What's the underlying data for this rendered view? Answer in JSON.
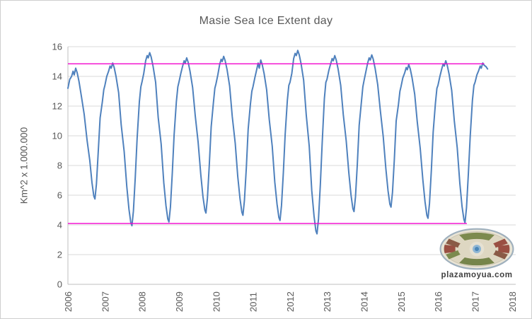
{
  "logo": {
    "text": "plazamoyua.com"
  },
  "colors": {
    "series_blue": "#4f81bd",
    "ref_magenta": "#f203cd",
    "gridline": "#d9d9d9",
    "axis_line": "#bfbfbf",
    "text_gray": "#595959"
  },
  "chart_data": {
    "type": "line",
    "title": "Masie Sea Ice Extent day",
    "xlabel": "",
    "ylabel": "Km^2 x 1.000.000",
    "ylim": [
      0,
      16
    ],
    "xlim": [
      2006,
      2018.1
    ],
    "y_ticks": [
      0,
      2,
      4,
      6,
      8,
      10,
      12,
      14,
      16
    ],
    "x_ticks": [
      2006,
      2007,
      2008,
      2009,
      2010,
      2011,
      2012,
      2013,
      2014,
      2015,
      2016,
      2017,
      2018
    ],
    "grid": "horizontal",
    "legend": "none",
    "series": [
      {
        "color": "#4f81bd",
        "points": [
          [
            2006.0,
            13.2
          ],
          [
            2006.05,
            13.8
          ],
          [
            2006.1,
            14.0
          ],
          [
            2006.14,
            14.35
          ],
          [
            2006.17,
            14.1
          ],
          [
            2006.21,
            14.55
          ],
          [
            2006.25,
            14.25
          ],
          [
            2006.3,
            13.65
          ],
          [
            2006.37,
            12.55
          ],
          [
            2006.44,
            11.45
          ],
          [
            2006.52,
            9.65
          ],
          [
            2006.59,
            8.35
          ],
          [
            2006.65,
            6.85
          ],
          [
            2006.7,
            5.95
          ],
          [
            2006.73,
            5.75
          ],
          [
            2006.77,
            6.75
          ],
          [
            2006.82,
            8.95
          ],
          [
            2006.87,
            11.2
          ],
          [
            2006.93,
            12.3
          ],
          [
            2006.97,
            13.1
          ],
          [
            2007.0,
            13.4
          ],
          [
            2007.05,
            14.0
          ],
          [
            2007.1,
            14.35
          ],
          [
            2007.14,
            14.7
          ],
          [
            2007.17,
            14.55
          ],
          [
            2007.21,
            14.9
          ],
          [
            2007.25,
            14.6
          ],
          [
            2007.3,
            14.0
          ],
          [
            2007.37,
            12.9
          ],
          [
            2007.44,
            10.75
          ],
          [
            2007.52,
            8.95
          ],
          [
            2007.59,
            6.6
          ],
          [
            2007.65,
            5.05
          ],
          [
            2007.7,
            4.15
          ],
          [
            2007.73,
            3.95
          ],
          [
            2007.77,
            4.95
          ],
          [
            2007.82,
            7.2
          ],
          [
            2007.87,
            9.8
          ],
          [
            2007.93,
            12.3
          ],
          [
            2007.97,
            13.3
          ],
          [
            2008.0,
            13.6
          ],
          [
            2008.05,
            14.2
          ],
          [
            2008.1,
            15.05
          ],
          [
            2008.14,
            15.4
          ],
          [
            2008.17,
            15.25
          ],
          [
            2008.21,
            15.6
          ],
          [
            2008.25,
            15.3
          ],
          [
            2008.3,
            14.7
          ],
          [
            2008.37,
            13.6
          ],
          [
            2008.44,
            11.25
          ],
          [
            2008.52,
            9.45
          ],
          [
            2008.59,
            6.85
          ],
          [
            2008.65,
            5.3
          ],
          [
            2008.7,
            4.4
          ],
          [
            2008.73,
            4.2
          ],
          [
            2008.77,
            5.2
          ],
          [
            2008.82,
            7.45
          ],
          [
            2008.87,
            10.05
          ],
          [
            2008.93,
            12.3
          ],
          [
            2008.97,
            13.3
          ],
          [
            2009.0,
            13.6
          ],
          [
            2009.05,
            14.2
          ],
          [
            2009.1,
            14.7
          ],
          [
            2009.14,
            15.05
          ],
          [
            2009.17,
            14.9
          ],
          [
            2009.21,
            15.25
          ],
          [
            2009.25,
            14.95
          ],
          [
            2009.3,
            14.35
          ],
          [
            2009.37,
            13.25
          ],
          [
            2009.44,
            11.35
          ],
          [
            2009.52,
            9.55
          ],
          [
            2009.59,
            7.4
          ],
          [
            2009.65,
            5.9
          ],
          [
            2009.7,
            5.0
          ],
          [
            2009.73,
            4.8
          ],
          [
            2009.77,
            5.8
          ],
          [
            2009.82,
            8.0
          ],
          [
            2009.87,
            10.6
          ],
          [
            2009.93,
            12.2
          ],
          [
            2009.97,
            13.2
          ],
          [
            2010.0,
            13.5
          ],
          [
            2010.05,
            14.1
          ],
          [
            2010.1,
            14.8
          ],
          [
            2010.14,
            15.15
          ],
          [
            2010.17,
            15.0
          ],
          [
            2010.21,
            15.35
          ],
          [
            2010.25,
            15.05
          ],
          [
            2010.3,
            14.45
          ],
          [
            2010.37,
            13.35
          ],
          [
            2010.44,
            11.3
          ],
          [
            2010.52,
            9.5
          ],
          [
            2010.59,
            7.25
          ],
          [
            2010.65,
            5.75
          ],
          [
            2010.7,
            4.85
          ],
          [
            2010.73,
            4.65
          ],
          [
            2010.77,
            5.65
          ],
          [
            2010.82,
            7.85
          ],
          [
            2010.87,
            10.45
          ],
          [
            2010.93,
            12.1
          ],
          [
            2010.97,
            13.0
          ],
          [
            2011.0,
            13.3
          ],
          [
            2011.05,
            13.9
          ],
          [
            2011.1,
            14.45
          ],
          [
            2011.14,
            14.9
          ],
          [
            2011.17,
            14.55
          ],
          [
            2011.21,
            15.1
          ],
          [
            2011.25,
            14.8
          ],
          [
            2011.3,
            14.2
          ],
          [
            2011.37,
            13.1
          ],
          [
            2011.44,
            11.1
          ],
          [
            2011.52,
            9.3
          ],
          [
            2011.59,
            6.9
          ],
          [
            2011.65,
            5.4
          ],
          [
            2011.7,
            4.5
          ],
          [
            2011.73,
            4.3
          ],
          [
            2011.77,
            5.3
          ],
          [
            2011.82,
            7.5
          ],
          [
            2011.87,
            10.1
          ],
          [
            2011.93,
            12.4
          ],
          [
            2011.97,
            13.4
          ],
          [
            2012.0,
            13.6
          ],
          [
            2012.05,
            14.2
          ],
          [
            2012.1,
            15.2
          ],
          [
            2012.14,
            15.55
          ],
          [
            2012.17,
            15.4
          ],
          [
            2012.21,
            15.75
          ],
          [
            2012.25,
            15.45
          ],
          [
            2012.3,
            14.85
          ],
          [
            2012.37,
            13.75
          ],
          [
            2012.44,
            11.4
          ],
          [
            2012.52,
            9.3
          ],
          [
            2012.59,
            6.3
          ],
          [
            2012.65,
            4.6
          ],
          [
            2012.7,
            3.6
          ],
          [
            2012.73,
            3.4
          ],
          [
            2012.77,
            4.4
          ],
          [
            2012.82,
            6.7
          ],
          [
            2012.87,
            9.5
          ],
          [
            2012.93,
            12.5
          ],
          [
            2012.97,
            13.6
          ],
          [
            2013.0,
            13.8
          ],
          [
            2013.05,
            14.4
          ],
          [
            2013.1,
            14.85
          ],
          [
            2013.14,
            15.2
          ],
          [
            2013.17,
            15.05
          ],
          [
            2013.21,
            15.4
          ],
          [
            2013.25,
            15.1
          ],
          [
            2013.3,
            14.5
          ],
          [
            2013.37,
            13.4
          ],
          [
            2013.44,
            11.45
          ],
          [
            2013.52,
            9.65
          ],
          [
            2013.59,
            7.5
          ],
          [
            2013.65,
            6.0
          ],
          [
            2013.7,
            5.1
          ],
          [
            2013.73,
            4.9
          ],
          [
            2013.77,
            5.9
          ],
          [
            2013.82,
            8.1
          ],
          [
            2013.87,
            10.7
          ],
          [
            2013.93,
            12.3
          ],
          [
            2013.97,
            13.3
          ],
          [
            2014.0,
            13.7
          ],
          [
            2014.05,
            14.3
          ],
          [
            2014.1,
            14.9
          ],
          [
            2014.14,
            15.25
          ],
          [
            2014.17,
            15.1
          ],
          [
            2014.21,
            15.45
          ],
          [
            2014.25,
            15.15
          ],
          [
            2014.3,
            14.55
          ],
          [
            2014.37,
            13.45
          ],
          [
            2014.44,
            11.75
          ],
          [
            2014.52,
            9.95
          ],
          [
            2014.59,
            7.8
          ],
          [
            2014.65,
            6.3
          ],
          [
            2014.7,
            5.4
          ],
          [
            2014.73,
            5.2
          ],
          [
            2014.77,
            6.2
          ],
          [
            2014.82,
            8.4
          ],
          [
            2014.87,
            11.0
          ],
          [
            2014.93,
            12.1
          ],
          [
            2014.97,
            13.0
          ],
          [
            2015.0,
            13.3
          ],
          [
            2015.05,
            13.9
          ],
          [
            2015.1,
            14.25
          ],
          [
            2015.14,
            14.6
          ],
          [
            2015.17,
            14.45
          ],
          [
            2015.21,
            14.8
          ],
          [
            2015.25,
            14.5
          ],
          [
            2015.3,
            13.9
          ],
          [
            2015.37,
            12.8
          ],
          [
            2015.44,
            10.95
          ],
          [
            2015.52,
            9.15
          ],
          [
            2015.59,
            7.05
          ],
          [
            2015.65,
            5.55
          ],
          [
            2015.7,
            4.65
          ],
          [
            2015.73,
            4.45
          ],
          [
            2015.77,
            5.45
          ],
          [
            2015.82,
            7.65
          ],
          [
            2015.87,
            10.25
          ],
          [
            2015.93,
            12.2
          ],
          [
            2015.97,
            13.2
          ],
          [
            2016.0,
            13.4
          ],
          [
            2016.05,
            14.0
          ],
          [
            2016.1,
            14.5
          ],
          [
            2016.14,
            14.85
          ],
          [
            2016.17,
            14.7
          ],
          [
            2016.21,
            15.05
          ],
          [
            2016.25,
            14.75
          ],
          [
            2016.3,
            14.15
          ],
          [
            2016.37,
            13.05
          ],
          [
            2016.44,
            11.0
          ],
          [
            2016.52,
            9.2
          ],
          [
            2016.59,
            6.8
          ],
          [
            2016.65,
            5.25
          ],
          [
            2016.7,
            4.35
          ],
          [
            2016.73,
            4.15
          ],
          [
            2016.77,
            5.15
          ],
          [
            2016.82,
            7.4
          ],
          [
            2016.87,
            10.0
          ],
          [
            2016.93,
            12.4
          ],
          [
            2016.97,
            13.4
          ],
          [
            2017.0,
            13.6
          ],
          [
            2017.05,
            14.1
          ],
          [
            2017.1,
            14.4
          ],
          [
            2017.14,
            14.7
          ],
          [
            2017.17,
            14.55
          ],
          [
            2017.21,
            14.9
          ],
          [
            2017.25,
            14.75
          ],
          [
            2017.3,
            14.65
          ],
          [
            2017.34,
            14.5
          ]
        ]
      }
    ],
    "ref_lines": [
      {
        "value": 14.85,
        "x_start": 2006.0,
        "x_end": 2017.25,
        "color": "#f203cd"
      },
      {
        "value": 4.1,
        "x_start": 2006.0,
        "x_end": 2016.78,
        "color": "#f203cd"
      }
    ]
  }
}
